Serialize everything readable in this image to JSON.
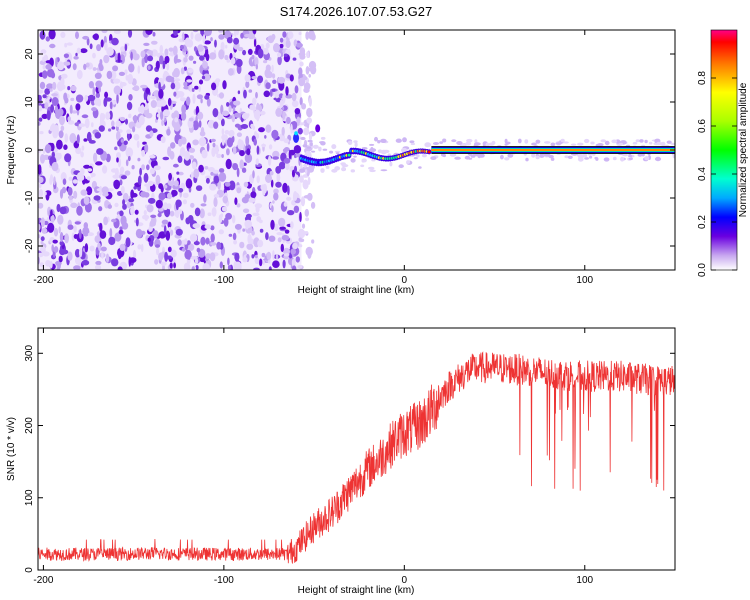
{
  "figure_title": "S174.2026.107.07.53.G27",
  "chart_data": [
    {
      "type": "heatmap",
      "xlabel": "Height of straight line (km)",
      "ylabel": "Frequency (Hz)",
      "xlim": [
        -203,
        150
      ],
      "ylim": [
        -25,
        25
      ],
      "xticks": [
        -200,
        -100,
        0,
        100
      ],
      "xtick_labels": [
        "-200",
        "-100",
        "0",
        "100"
      ],
      "yticks": [
        -20,
        -10,
        0,
        10,
        20
      ],
      "ytick_labels": [
        "-20",
        "-10",
        "0",
        "10",
        "20"
      ],
      "colorbar": {
        "label": "Normalized spectral amplitude",
        "range": [
          0,
          1
        ],
        "ticks": [
          0.0,
          0.2,
          0.4,
          0.6,
          0.8
        ],
        "tick_labels": [
          "0.0",
          "0.2",
          "0.4",
          "0.6",
          "0.8"
        ]
      },
      "features": [
        {
          "name": "broadband-noise",
          "x_range": [
            -203,
            -57
          ],
          "freq_range": [
            -25,
            25
          ],
          "amplitude": 0.08
        },
        {
          "name": "tone-onset",
          "x": -60,
          "freq": 2.5,
          "amplitude": 0.35
        },
        {
          "name": "low-frequency-wobble",
          "x_range": [
            -57,
            15
          ],
          "freq": -1.0,
          "amplitude": 0.5
        },
        {
          "name": "carrier-tone",
          "x_range": [
            15,
            150
          ],
          "freq": 0.0,
          "amplitude": 1.0
        }
      ]
    },
    {
      "type": "line",
      "xlabel": "Height of straight line (km)",
      "ylabel": "SNR (10 * v/v)",
      "xlim": [
        -203,
        150
      ],
      "ylim": [
        0,
        335
      ],
      "xticks": [
        -200,
        -100,
        0,
        100
      ],
      "xtick_labels": [
        "-200",
        "-100",
        "0",
        "100"
      ],
      "yticks": [
        0,
        100,
        200,
        300
      ],
      "ytick_labels": [
        "0",
        "100",
        "200",
        "300"
      ],
      "series": [
        {
          "name": "SNR",
          "color": "#ee3333",
          "x": [
            -203,
            -180,
            -160,
            -140,
            -120,
            -100,
            -80,
            -65,
            -60,
            -55,
            -50,
            -45,
            -40,
            -35,
            -30,
            -25,
            -20,
            -15,
            -10,
            -5,
            0,
            5,
            10,
            15,
            20,
            25,
            30,
            35,
            40,
            50,
            60,
            70,
            80,
            90,
            100,
            110,
            120,
            130,
            140,
            150
          ],
          "y": [
            22,
            22,
            22,
            23,
            22,
            22,
            22,
            22,
            30,
            45,
            60,
            70,
            80,
            95,
            110,
            125,
            140,
            150,
            165,
            180,
            190,
            195,
            205,
            220,
            240,
            255,
            265,
            275,
            280,
            280,
            278,
            276,
            272,
            270,
            268,
            268,
            268,
            265,
            262,
            262
          ]
        }
      ]
    }
  ]
}
